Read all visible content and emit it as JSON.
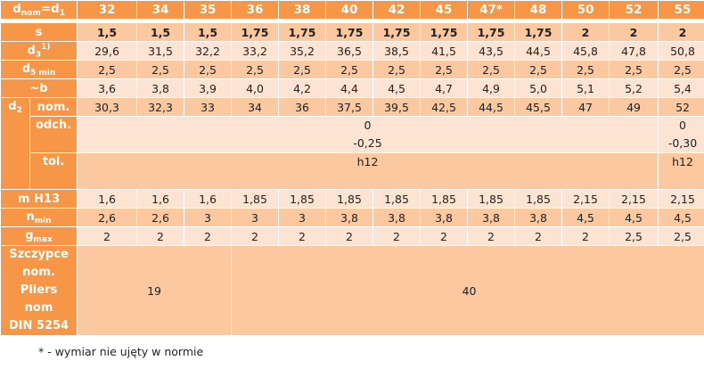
{
  "header": {
    "label_main": "d",
    "label_sub": "nom",
    "label_rest": "=d",
    "label_sub2": "1",
    "columns": [
      "32",
      "34",
      "35",
      "36",
      "38",
      "40",
      "42",
      "45",
      "47*",
      "48",
      "50",
      "52",
      "55"
    ]
  },
  "rows": [
    {
      "key": "s",
      "label": "s",
      "style": "dark bold",
      "values": [
        "1,5",
        "1,5",
        "1,5",
        "1,75",
        "1,75",
        "1,75",
        "1,75",
        "1,75",
        "1,75",
        "1,75",
        "2",
        "2",
        "2"
      ]
    },
    {
      "key": "d3",
      "label": "d",
      "sub": "3",
      "sup": "1)",
      "style": "light",
      "values": [
        "29,6",
        "31,5",
        "32,2",
        "33,2",
        "35,2",
        "36,5",
        "38,5",
        "41,5",
        "43,5",
        "44,5",
        "45,8",
        "47,8",
        "50,8"
      ]
    },
    {
      "key": "d5",
      "label": "d",
      "sub": "5 min",
      "style": "dark",
      "values": [
        "2,5",
        "2,5",
        "2,5",
        "2,5",
        "2,5",
        "2,5",
        "2,5",
        "2,5",
        "2,5",
        "2,5",
        "2,5",
        "2,5",
        "2,5"
      ]
    },
    {
      "key": "b",
      "label": "~b",
      "style": "light",
      "values": [
        "3,6",
        "3,8",
        "3,9",
        "4,0",
        "4,2",
        "4,4",
        "4,5",
        "4,7",
        "4,9",
        "5,0",
        "5,1",
        "5,2",
        "5,4"
      ]
    }
  ],
  "d2": {
    "label": "d",
    "sub": "2",
    "nom": {
      "label": "nom.",
      "values": [
        "30,3",
        "32,3",
        "33",
        "34",
        "36",
        "37,5",
        "39,5",
        "42,5",
        "44,5",
        "45,5",
        "47",
        "49",
        "52"
      ]
    },
    "odch": {
      "label": "odch.",
      "group1": [
        "0",
        "-0,25"
      ],
      "group2": [
        "0",
        "-0,30"
      ]
    },
    "tol": {
      "label": "tol.",
      "group1": "h12",
      "group2": "h12"
    }
  },
  "rows2": [
    {
      "key": "m",
      "label": "m   H13",
      "style": "light",
      "values": [
        "1,6",
        "1,6",
        "1,6",
        "1,85",
        "1,85",
        "1,85",
        "1,85",
        "1,85",
        "1,85",
        "1,85",
        "2,15",
        "2,15",
        "2,15"
      ]
    },
    {
      "key": "n",
      "label": "n",
      "sub": "min",
      "style": "dark",
      "values": [
        "2,6",
        "2,6",
        "3",
        "3",
        "3",
        "3,8",
        "3,8",
        "3,8",
        "3,8",
        "3,8",
        "4,5",
        "4,5",
        "4,5"
      ]
    },
    {
      "key": "g",
      "label": "g",
      "sub": "max",
      "style": "light",
      "values": [
        "2",
        "2",
        "2",
        "2",
        "2",
        "2",
        "2",
        "2",
        "2",
        "2",
        "2",
        "2,5",
        "2,5"
      ]
    }
  ],
  "pliers": {
    "label_lines": [
      "Szczypce",
      "nom.",
      "Pliers",
      "nom",
      "DIN 5254"
    ],
    "group1": "19",
    "group2": "40"
  },
  "footnote": "* - wymiar nie ujęty w normie",
  "colors": {
    "header": "#F79646",
    "row_dark": "#FBC8A0",
    "row_light": "#FDE3D1"
  }
}
